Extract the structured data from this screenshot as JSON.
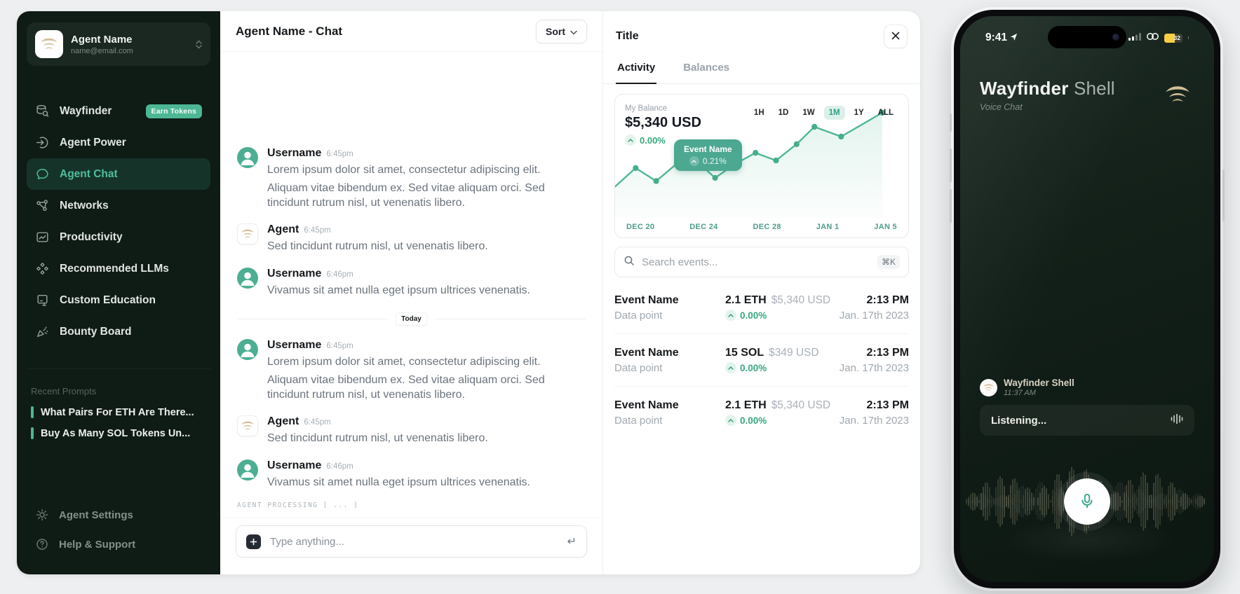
{
  "sidebar": {
    "profile": {
      "name": "Agent Name",
      "email": "name@email.com"
    },
    "items": [
      {
        "label": "Wayfinder",
        "badge": "Earn Tokens"
      },
      {
        "label": "Agent Power"
      },
      {
        "label": "Agent Chat",
        "active": true
      },
      {
        "label": "Networks"
      },
      {
        "label": "Productivity"
      },
      {
        "label": "Recommended LLMs"
      },
      {
        "label": "Custom Education"
      },
      {
        "label": "Bounty Board"
      }
    ],
    "recent_prompts": {
      "heading": "Recent Prompts",
      "items": [
        {
          "label": "What Pairs For ETH Are There..."
        },
        {
          "label": "Buy As Many SOL Tokens Un..."
        }
      ]
    },
    "footer_items": [
      {
        "label": "Agent Settings"
      },
      {
        "label": "Help & Support"
      }
    ]
  },
  "chat": {
    "title": "Agent Name - Chat",
    "sort_label": "Sort",
    "divider_label": "Today",
    "messages": [
      {
        "author": "Username",
        "time": "6:45pm",
        "paragraphs": [
          "Lorem ipsum dolor sit amet, consectetur adipiscing elit.",
          "Aliquam vitae bibendum ex. Sed vitae aliquam orci. Sed tincidunt rutrum nisl, ut venenatis libero."
        ]
      },
      {
        "author": "Agent",
        "time": "6:45pm",
        "paragraphs": [
          "Sed tincidunt rutrum nisl, ut venenatis libero."
        ]
      },
      {
        "author": "Username",
        "time": "6:46pm",
        "paragraphs": [
          "Vivamus sit amet nulla eget ipsum ultrices venenatis."
        ]
      }
    ],
    "processing_label": "AGENT PROCESSING [ ... ]",
    "input": {
      "placeholder": "Type anything...",
      "return_icon": "↵"
    }
  },
  "panel": {
    "title": "Title",
    "tabs": [
      {
        "label": "Activity",
        "active": true
      },
      {
        "label": "Balances",
        "active": false
      }
    ],
    "balance": {
      "label": "My Balance",
      "value": "$5,340 USD",
      "change": "0.00%"
    },
    "ranges": [
      "1H",
      "1D",
      "1W",
      "1M",
      "1Y",
      "ALL"
    ],
    "range_active": "1M",
    "tooltip": {
      "title": "Event Name",
      "change": "0.21%"
    },
    "chart_data": {
      "type": "line",
      "title": "My Balance",
      "current_value": "$5,340 USD",
      "change": "0.00%",
      "x_labels": [
        "DEC 20",
        "DEC 24",
        "DEC 28",
        "JAN 1",
        "JAN 5"
      ],
      "values_relative_pct": [
        25,
        42,
        30,
        46,
        50,
        33,
        46,
        56,
        49,
        64,
        80,
        71,
        93
      ],
      "annotation": {
        "label": "Event Name",
        "change": "0.21%"
      },
      "range_active": "1M",
      "grid": false,
      "legend": false
    },
    "search": {
      "placeholder": "Search events...",
      "shortcut": "⌘K"
    },
    "events": [
      {
        "name": "Event Name",
        "sub": "Data point",
        "amount": "2.1 ETH",
        "usd": "$5,340 USD",
        "change": "0.00%",
        "time": "2:13 PM",
        "date": "Jan. 17th 2023"
      },
      {
        "name": "Event Name",
        "sub": "Data point",
        "amount": "15 SOL",
        "usd": "$349 USD",
        "change": "0.00%",
        "time": "2:13 PM",
        "date": "Jan. 17th 2023"
      },
      {
        "name": "Event Name",
        "sub": "Data point",
        "amount": "2.1 ETH",
        "usd": "$5,340 USD",
        "change": "0.00%",
        "time": "2:13 PM",
        "date": "Jan. 17th 2023"
      }
    ]
  },
  "phone": {
    "status": {
      "time": "9:41",
      "battery_percent": "32"
    },
    "header": {
      "title_primary": "Wayfinder",
      "title_secondary": "Shell",
      "subtitle": "Voice Chat"
    },
    "message": {
      "sender": "Wayfinder Shell",
      "time": "11:37 AM",
      "bubble_text": "Listening..."
    }
  },
  "colors": {
    "accent_green": "#4DB795",
    "sidebar_bg": "#0F1B15",
    "active_nav_text": "#4FBF9D",
    "badge_bg": "#4DB795",
    "chart_line": "#4DB795",
    "tooltip_bg": "#4CA891",
    "positive_green": "#36A97D",
    "range_active_bg": "#DCF0EA",
    "range_active_text": "#2E9E87",
    "phone_screen": "#121F18",
    "gold_logo": "#D2BF95",
    "battery_yellow": "#F7CE45"
  }
}
